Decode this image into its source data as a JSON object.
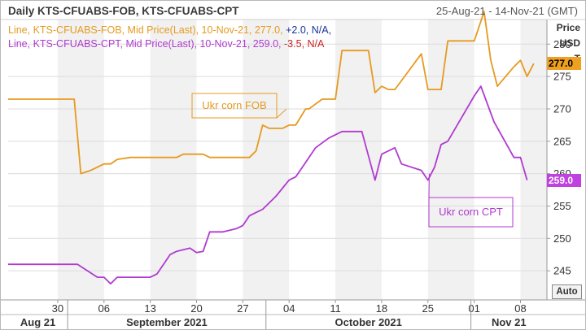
{
  "header": {
    "title": "Daily KTS-CFUABS-FOB, KTS-CFUABS-CPT",
    "date_range": "25-Aug-21 - 14-Nov-21 (GMT)"
  },
  "legend": [
    {
      "parts": [
        {
          "text": "Line, KTS-CFUABS-FOB, Mid Price(Last), 10-Nov-21, 277.0, ",
          "color": "#e69a20"
        },
        {
          "text": "+2.0",
          "color": "#1a3399"
        },
        {
          "text": ", N/A,",
          "color": "#1a3399"
        }
      ]
    },
    {
      "parts": [
        {
          "text": "Line, KTS-CFUABS-CPT, Mid Price(Last), 10-Nov-21, 259.0, ",
          "color": "#b03ad0"
        },
        {
          "text": "-3.5",
          "color": "#cc2222"
        },
        {
          "text": ", N/A",
          "color": "#cc2222"
        }
      ]
    }
  ],
  "axis_unit": [
    "Price",
    "USD",
    "T"
  ],
  "auto_button": "Auto",
  "last_value_tags": [
    {
      "text": "277.0",
      "value": 277.0,
      "bg": "#f0a020",
      "fg": "#000000"
    },
    {
      "text": "259.0",
      "value": 259.0,
      "bg": "#c040e0",
      "fg": "#ffffff"
    }
  ],
  "callouts": {
    "fob": "Ukr corn FOB",
    "cpt": "Ukr corn CPT"
  },
  "colors": {
    "fob": "#e69a20",
    "cpt": "#b03ad0",
    "grid": "#dcdcdc",
    "band": "#f1f1f1"
  },
  "chart_data": {
    "type": "line",
    "title": "Daily KTS-CFUABS-FOB, KTS-CFUABS-CPT",
    "ylabel": "Price USD T",
    "ylim": [
      240.5,
      283.8
    ],
    "yticks": [
      245,
      250,
      255,
      260,
      265,
      270,
      275,
      280
    ],
    "xlim": [
      -2.5,
      79
    ],
    "day_ticks": [
      {
        "day": 5,
        "label": "30"
      },
      {
        "day": 12,
        "label": "06"
      },
      {
        "day": 19,
        "label": "13"
      },
      {
        "day": 26,
        "label": "20"
      },
      {
        "day": 33,
        "label": "27"
      },
      {
        "day": 40,
        "label": "04"
      },
      {
        "day": 47,
        "label": "11"
      },
      {
        "day": 54,
        "label": "18"
      },
      {
        "day": 61,
        "label": "25"
      },
      {
        "day": 68,
        "label": "01"
      },
      {
        "day": 75,
        "label": "08"
      }
    ],
    "month_labels": [
      {
        "label": "Aug 21",
        "start": -2.5,
        "end": 6.5
      },
      {
        "label": "September 2021",
        "start": 6.5,
        "end": 36.5
      },
      {
        "label": "October 2021",
        "start": 36.5,
        "end": 67.5
      },
      {
        "label": "Nov 21",
        "start": 67.5,
        "end": 79
      }
    ],
    "series": [
      {
        "name": "KTS-CFUABS-FOB",
        "color": "#e69a20",
        "points": [
          [
            -2.5,
            271.5
          ],
          [
            7.5,
            271.5
          ],
          [
            8.5,
            260
          ],
          [
            10,
            260.5
          ],
          [
            12,
            261.5
          ],
          [
            13,
            261.5
          ],
          [
            14,
            262.2
          ],
          [
            16,
            262.5
          ],
          [
            20,
            262.5
          ],
          [
            23,
            262.5
          ],
          [
            24,
            263
          ],
          [
            27,
            263
          ],
          [
            28,
            262.5
          ],
          [
            31,
            262.5
          ],
          [
            34,
            262.5
          ],
          [
            35,
            263.5
          ],
          [
            36,
            267.5
          ],
          [
            37,
            267
          ],
          [
            39,
            267
          ],
          [
            40,
            267.5
          ],
          [
            41,
            267.5
          ],
          [
            42.5,
            270
          ],
          [
            43,
            270
          ],
          [
            45,
            271.5
          ],
          [
            47,
            271.5
          ],
          [
            48,
            279
          ],
          [
            52,
            279
          ],
          [
            53,
            272.5
          ],
          [
            54,
            273.5
          ],
          [
            55,
            273
          ],
          [
            56,
            273
          ],
          [
            60,
            278.5
          ],
          [
            61,
            273
          ],
          [
            63,
            273
          ],
          [
            64,
            280.5
          ],
          [
            68,
            280.5
          ],
          [
            69.5,
            285
          ],
          [
            70.5,
            277.5
          ],
          [
            71.5,
            273.5
          ],
          [
            74,
            276.5
          ],
          [
            75,
            277.5
          ],
          [
            76,
            275
          ],
          [
            77,
            277
          ]
        ]
      },
      {
        "name": "KTS-CFUABS-CPT",
        "color": "#b03ad0",
        "points": [
          [
            -2.5,
            246
          ],
          [
            8,
            246
          ],
          [
            11,
            244
          ],
          [
            12,
            244
          ],
          [
            13,
            243
          ],
          [
            14,
            244
          ],
          [
            19,
            244
          ],
          [
            20,
            244.5
          ],
          [
            21,
            246
          ],
          [
            22,
            247.5
          ],
          [
            23,
            248
          ],
          [
            25,
            248.5
          ],
          [
            26,
            247.8
          ],
          [
            27,
            248
          ],
          [
            28,
            251
          ],
          [
            30,
            251
          ],
          [
            32,
            251.5
          ],
          [
            33,
            252
          ],
          [
            34,
            253.5
          ],
          [
            35,
            254
          ],
          [
            36,
            254.5
          ],
          [
            38,
            256.5
          ],
          [
            40,
            259
          ],
          [
            41,
            259.5
          ],
          [
            42,
            261
          ],
          [
            44,
            264
          ],
          [
            46,
            265.5
          ],
          [
            48,
            266.5
          ],
          [
            51,
            266.5
          ],
          [
            53,
            259
          ],
          [
            54,
            263
          ],
          [
            56,
            264
          ],
          [
            57,
            261.5
          ],
          [
            60,
            260.5
          ],
          [
            61,
            259
          ],
          [
            62,
            261
          ],
          [
            63,
            264.5
          ],
          [
            64,
            265
          ],
          [
            66,
            268.5
          ],
          [
            68,
            272
          ],
          [
            69,
            273.5
          ],
          [
            71,
            268
          ],
          [
            74,
            262.5
          ],
          [
            75,
            262.5
          ],
          [
            76,
            259
          ]
        ]
      }
    ]
  }
}
